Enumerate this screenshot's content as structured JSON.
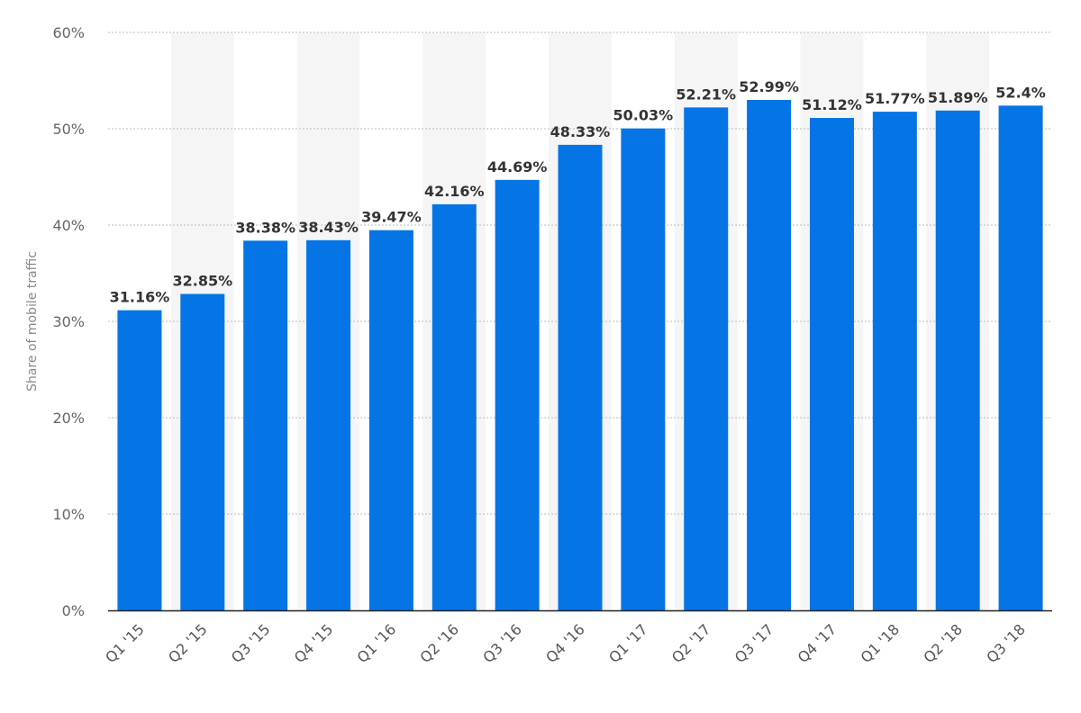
{
  "chart_data": {
    "type": "bar",
    "ylabel": "Share of mobile traffic",
    "ylim": [
      0,
      60
    ],
    "y_ticks": [
      0,
      10,
      20,
      30,
      40,
      50,
      60
    ],
    "y_tick_suffix": "%",
    "grid": true,
    "categories": [
      "Q1 '15",
      "Q2 '15",
      "Q3 '15",
      "Q4 '15",
      "Q1 '16",
      "Q2 '16",
      "Q3 '16",
      "Q4 '16",
      "Q1 '17",
      "Q2 '17",
      "Q3 '17",
      "Q4 '17",
      "Q1 '18",
      "Q2 '18",
      "Q3 '18"
    ],
    "values": [
      31.16,
      32.85,
      38.38,
      38.43,
      39.47,
      42.16,
      44.69,
      48.33,
      50.03,
      52.21,
      52.99,
      51.12,
      51.77,
      51.89,
      52.4
    ],
    "value_labels": [
      "31.16%",
      "32.85%",
      "38.38%",
      "38.43%",
      "39.47%",
      "42.16%",
      "44.69%",
      "48.33%",
      "50.03%",
      "52.21%",
      "52.99%",
      "51.12%",
      "51.77%",
      "51.89%",
      "52.4%"
    ]
  },
  "colors": {
    "bar": "#0575e6",
    "band": "#f5f5f5",
    "grid": "#bbbbbb",
    "axis": "#222222"
  }
}
